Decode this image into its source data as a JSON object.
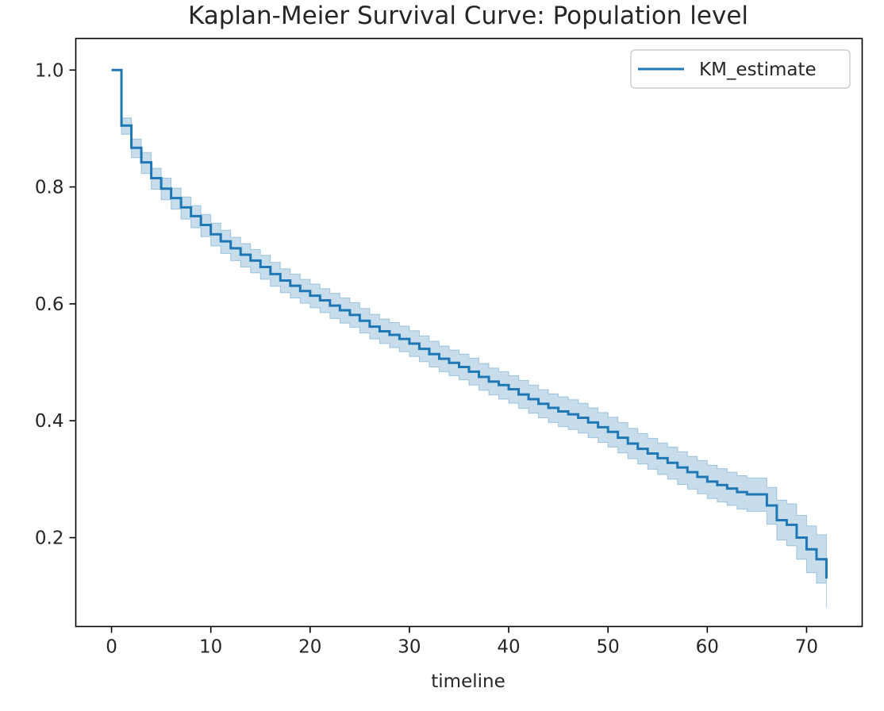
{
  "chart_data": {
    "type": "line",
    "title": "Kaplan-Meier Survival Curve: Population level",
    "xlabel": "timeline",
    "ylabel": "",
    "xlim": [
      -3.6,
      75.6
    ],
    "ylim": [
      0.048,
      1.054
    ],
    "xticks": [
      0,
      10,
      20,
      30,
      40,
      50,
      60,
      70
    ],
    "yticks": [
      0.2,
      0.4,
      0.6,
      0.8,
      1.0
    ],
    "xtick_labels": [
      "0",
      "10",
      "20",
      "30",
      "40",
      "50",
      "60",
      "70"
    ],
    "ytick_labels": [
      "0.2",
      "0.4",
      "0.6",
      "0.8",
      "1.0"
    ],
    "grid": false,
    "legend_position": "top-right",
    "series": [
      {
        "name": "KM_estimate",
        "color": "#1f77b4",
        "ci_color": "#1f77b4",
        "ci_opacity": 0.25,
        "x": [
          0,
          1,
          2,
          3,
          4,
          5,
          6,
          7,
          8,
          9,
          10,
          11,
          12,
          13,
          14,
          15,
          16,
          17,
          18,
          19,
          20,
          21,
          22,
          23,
          24,
          25,
          26,
          27,
          28,
          29,
          30,
          31,
          32,
          33,
          34,
          35,
          36,
          37,
          38,
          39,
          40,
          41,
          42,
          43,
          44,
          45,
          46,
          47,
          48,
          49,
          50,
          51,
          52,
          53,
          54,
          55,
          56,
          57,
          58,
          59,
          60,
          61,
          62,
          63,
          64,
          65,
          66,
          67,
          68,
          69,
          70,
          71,
          72
        ],
        "survival": [
          1.0,
          0.905,
          0.867,
          0.842,
          0.815,
          0.797,
          0.781,
          0.765,
          0.75,
          0.735,
          0.719,
          0.707,
          0.695,
          0.684,
          0.674,
          0.663,
          0.651,
          0.64,
          0.631,
          0.622,
          0.614,
          0.606,
          0.597,
          0.589,
          0.581,
          0.571,
          0.561,
          0.553,
          0.547,
          0.54,
          0.532,
          0.523,
          0.514,
          0.506,
          0.499,
          0.492,
          0.484,
          0.475,
          0.467,
          0.461,
          0.454,
          0.445,
          0.437,
          0.429,
          0.422,
          0.416,
          0.411,
          0.405,
          0.397,
          0.389,
          0.381,
          0.371,
          0.361,
          0.352,
          0.344,
          0.336,
          0.328,
          0.32,
          0.312,
          0.304,
          0.296,
          0.29,
          0.284,
          0.278,
          0.274,
          0.274,
          0.255,
          0.23,
          0.222,
          0.2,
          0.18,
          0.163,
          0.13
        ],
        "ci_lower": [
          1.0,
          0.89,
          0.85,
          0.823,
          0.796,
          0.778,
          0.762,
          0.745,
          0.73,
          0.715,
          0.699,
          0.686,
          0.674,
          0.663,
          0.653,
          0.642,
          0.63,
          0.619,
          0.61,
          0.601,
          0.593,
          0.585,
          0.575,
          0.567,
          0.56,
          0.55,
          0.54,
          0.532,
          0.525,
          0.518,
          0.51,
          0.501,
          0.492,
          0.484,
          0.477,
          0.47,
          0.461,
          0.452,
          0.444,
          0.437,
          0.43,
          0.421,
          0.413,
          0.405,
          0.397,
          0.39,
          0.385,
          0.379,
          0.371,
          0.363,
          0.355,
          0.345,
          0.335,
          0.326,
          0.317,
          0.308,
          0.3,
          0.291,
          0.283,
          0.275,
          0.267,
          0.261,
          0.255,
          0.249,
          0.245,
          0.245,
          0.223,
          0.196,
          0.186,
          0.163,
          0.14,
          0.122,
          0.08
        ],
        "ci_upper": [
          1.0,
          0.918,
          0.882,
          0.859,
          0.832,
          0.815,
          0.798,
          0.783,
          0.768,
          0.753,
          0.738,
          0.726,
          0.714,
          0.703,
          0.693,
          0.683,
          0.671,
          0.66,
          0.651,
          0.642,
          0.634,
          0.626,
          0.618,
          0.61,
          0.602,
          0.592,
          0.582,
          0.574,
          0.568,
          0.562,
          0.554,
          0.545,
          0.536,
          0.528,
          0.521,
          0.514,
          0.507,
          0.498,
          0.49,
          0.484,
          0.477,
          0.469,
          0.461,
          0.453,
          0.446,
          0.441,
          0.436,
          0.43,
          0.422,
          0.414,
          0.406,
          0.397,
          0.387,
          0.378,
          0.37,
          0.362,
          0.355,
          0.347,
          0.339,
          0.332,
          0.324,
          0.318,
          0.312,
          0.306,
          0.302,
          0.302,
          0.286,
          0.264,
          0.258,
          0.238,
          0.22,
          0.205,
          0.194
        ]
      }
    ]
  }
}
